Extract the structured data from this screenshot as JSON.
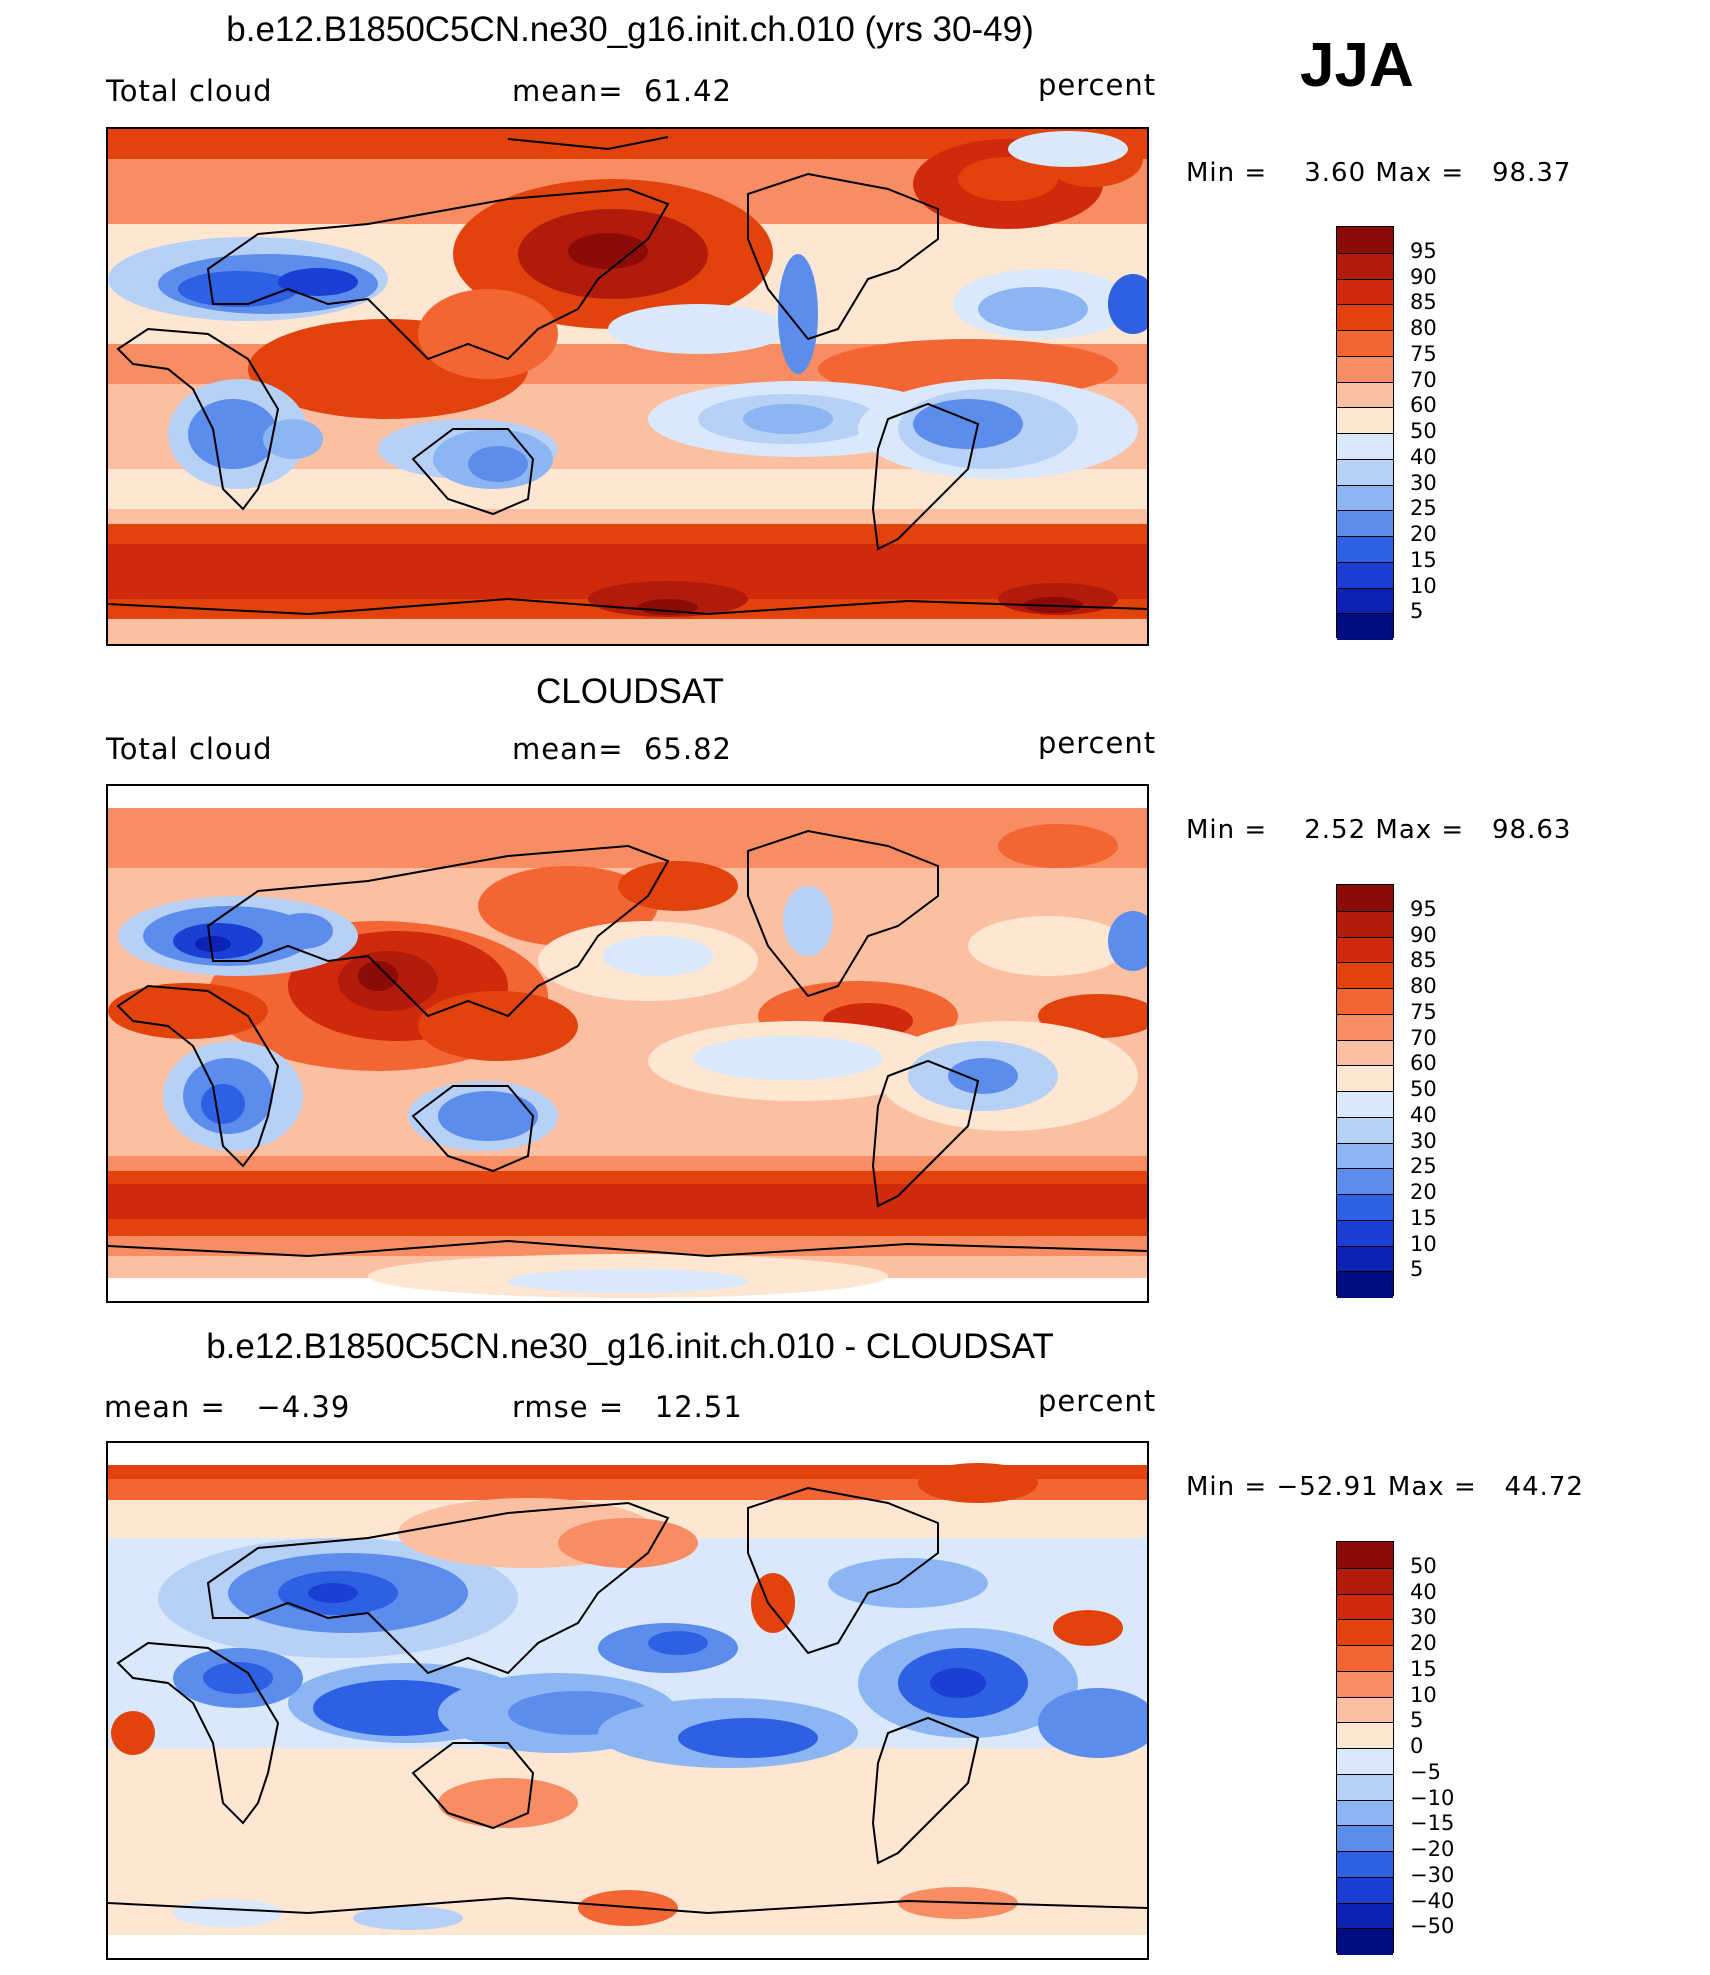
{
  "season": "JJA",
  "panels": [
    {
      "title": "b.e12.B1850C5CN.ne30_g16.init.ch.010 (yrs 30-49)",
      "left_label": "Total cloud",
      "center_label": "mean=  61.42",
      "right_label": "percent",
      "min_max": "Min =    3.60 Max =   98.37",
      "colorbar_labels": [
        "95",
        "90",
        "85",
        "80",
        "75",
        "70",
        "60",
        "50",
        "40",
        "30",
        "25",
        "20",
        "15",
        "10",
        "5"
      ],
      "colorbar_colors": [
        "#8b0b06",
        "#b11b0b",
        "#d02a0c",
        "#e2430d",
        "#f36633",
        "#f88d63",
        "#fbbfa2",
        "#fde6d2",
        "#d9e8fb",
        "#b6d0f6",
        "#8bb5f3",
        "#5c8ded",
        "#2e60e3",
        "#1b3fd2",
        "#0c22b2",
        "#000c80"
      ]
    },
    {
      "title": "CLOUDSAT",
      "left_label": "Total cloud",
      "center_label": "mean=  65.82",
      "right_label": "percent",
      "min_max": "Min =    2.52 Max =   98.63",
      "colorbar_labels": [
        "95",
        "90",
        "85",
        "80",
        "75",
        "70",
        "60",
        "50",
        "40",
        "30",
        "25",
        "20",
        "15",
        "10",
        "5"
      ],
      "colorbar_colors": [
        "#8b0b06",
        "#b11b0b",
        "#d02a0c",
        "#e2430d",
        "#f36633",
        "#f88d63",
        "#fbbfa2",
        "#fde6d2",
        "#d9e8fb",
        "#b6d0f6",
        "#8bb5f3",
        "#5c8ded",
        "#2e60e3",
        "#1b3fd2",
        "#0c22b2",
        "#000c80"
      ]
    },
    {
      "title": "b.e12.B1850C5CN.ne30_g16.init.ch.010 - CLOUDSAT",
      "left_label": "mean =   −4.39",
      "center_label": "rmse =   12.51",
      "right_label": "percent",
      "min_max": "Min = −52.91 Max =   44.72",
      "colorbar_labels": [
        "50",
        "40",
        "30",
        "20",
        "15",
        "10",
        "5",
        "0",
        "−5",
        "−10",
        "−15",
        "−20",
        "−30",
        "−40",
        "−50"
      ],
      "colorbar_colors": [
        "#8b0b06",
        "#b11b0b",
        "#d02a0c",
        "#e2430d",
        "#f36633",
        "#f88d63",
        "#fbbfa2",
        "#fde6d2",
        "#d9e8fb",
        "#b6d0f6",
        "#8bb5f3",
        "#5c8ded",
        "#2e60e3",
        "#1b3fd2",
        "#0c22b2",
        "#000c80"
      ]
    }
  ]
}
